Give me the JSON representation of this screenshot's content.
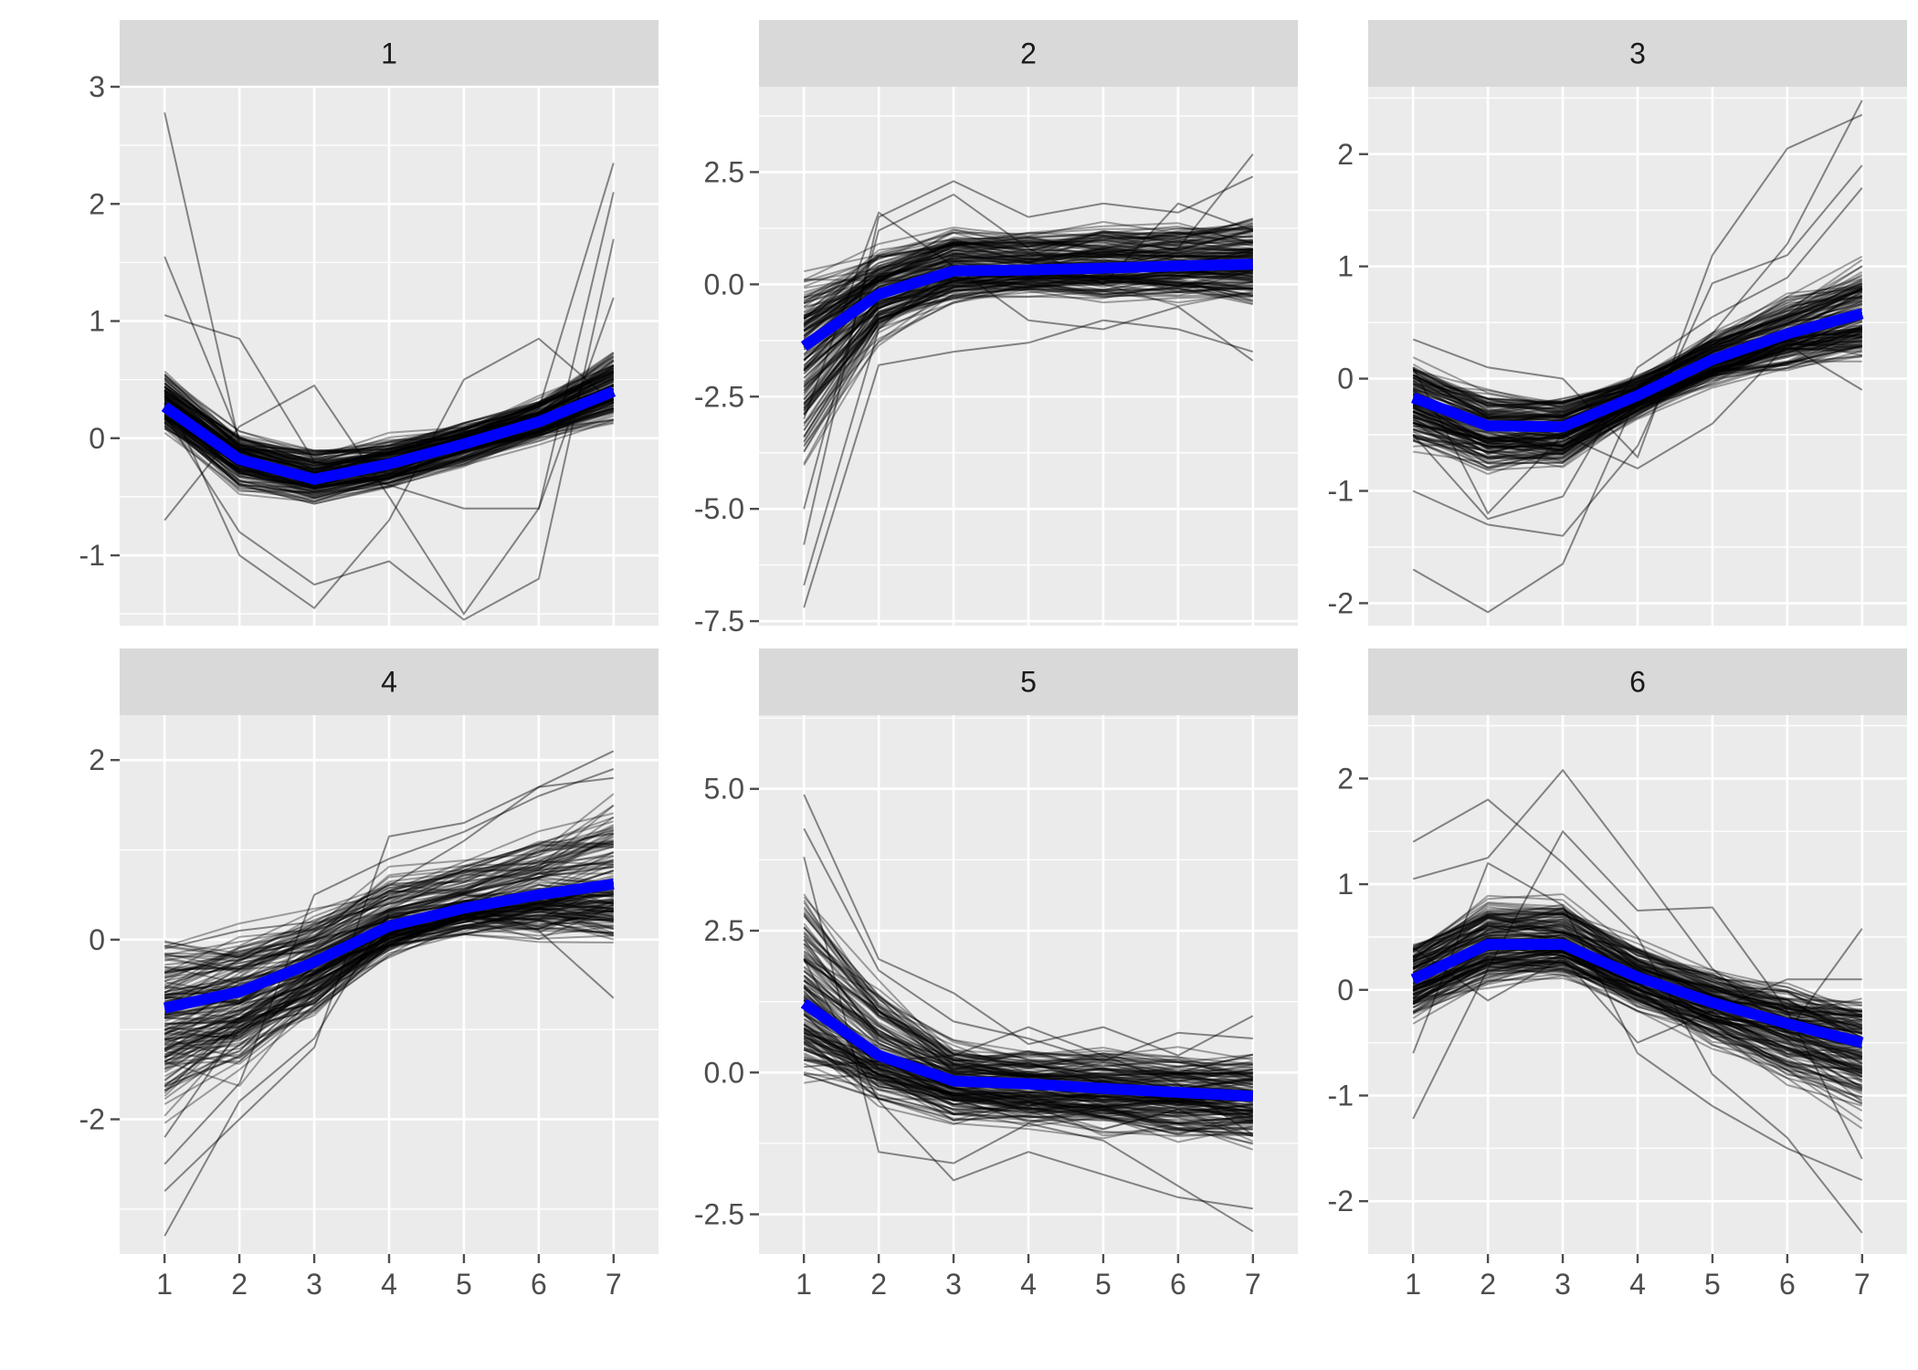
{
  "chart_data": [
    {
      "type": "line",
      "panel_label": "1",
      "x": [
        1,
        2,
        3,
        4,
        5,
        6,
        7
      ],
      "xlim": [
        0.4,
        7.6
      ],
      "ylim": [
        -1.6,
        3.0
      ],
      "y_ticks": [
        -1,
        0,
        1,
        2,
        3
      ],
      "y_tick_labels": [
        "-1",
        "0",
        "1",
        "2",
        "3"
      ],
      "mean": [
        0.27,
        -0.18,
        -0.35,
        -0.22,
        -0.05,
        0.14,
        0.4
      ],
      "spread_lo": [
        0.05,
        -0.45,
        -0.55,
        -0.45,
        -0.25,
        -0.05,
        0.15
      ],
      "spread_hi": [
        0.55,
        0.05,
        -0.1,
        0.0,
        0.15,
        0.35,
        0.75
      ],
      "outliers": [
        [
          2.78,
          -0.05,
          -0.3,
          -0.2,
          -0.1,
          0.2,
          0.5
        ],
        [
          1.55,
          0.0,
          -0.2,
          -0.3,
          -0.05,
          0.25,
          2.35
        ],
        [
          1.05,
          0.85,
          -0.2,
          -0.4,
          -0.6,
          -0.6,
          1.2
        ],
        [
          -0.7,
          0.1,
          0.45,
          -0.5,
          -1.5,
          -0.6,
          2.1
        ],
        [
          0.4,
          -1.0,
          -1.45,
          -0.7,
          0.5,
          0.85,
          0.3
        ],
        [
          0.2,
          -0.8,
          -1.25,
          -1.05,
          -1.55,
          -1.2,
          1.7
        ]
      ]
    },
    {
      "type": "line",
      "panel_label": "2",
      "x": [
        1,
        2,
        3,
        4,
        5,
        6,
        7
      ],
      "xlim": [
        0.4,
        7.6
      ],
      "ylim": [
        -7.6,
        4.4
      ],
      "y_ticks": [
        -7.5,
        -5.0,
        -2.5,
        0.0,
        2.5
      ],
      "y_tick_labels": [
        "-7.5",
        "-5.0",
        "-2.5",
        "0.0",
        "2.5"
      ],
      "mean": [
        -1.38,
        -0.22,
        0.3,
        0.32,
        0.36,
        0.41,
        0.45
      ],
      "spread_lo": [
        -4.2,
        -1.2,
        -0.45,
        -0.3,
        -0.35,
        -0.4,
        -0.45
      ],
      "spread_hi": [
        0.0,
        0.85,
        1.25,
        1.2,
        1.3,
        1.4,
        1.45
      ],
      "outliers": [
        [
          -7.2,
          -1.8,
          -1.5,
          -1.3,
          -0.8,
          -1.0,
          -1.5
        ],
        [
          -6.7,
          -1.0,
          0.5,
          0.2,
          0.4,
          0.8,
          2.9
        ],
        [
          -5.8,
          1.5,
          2.3,
          1.5,
          1.8,
          1.6,
          2.4
        ],
        [
          -5.0,
          1.2,
          2.0,
          0.8,
          0.0,
          1.8,
          1.2
        ],
        [
          -3.0,
          1.6,
          0.4,
          -0.8,
          -1.0,
          -0.5,
          -1.7
        ]
      ]
    },
    {
      "type": "line",
      "panel_label": "3",
      "x": [
        1,
        2,
        3,
        4,
        5,
        6,
        7
      ],
      "xlim": [
        0.4,
        7.6
      ],
      "ylim": [
        -2.2,
        2.6
      ],
      "y_ticks": [
        -2,
        -1,
        0,
        1,
        2
      ],
      "y_tick_labels": [
        "-2",
        "-1",
        "0",
        "1",
        "2"
      ],
      "mean": [
        -0.17,
        -0.42,
        -0.43,
        -0.15,
        0.17,
        0.4,
        0.58
      ],
      "spread_lo": [
        -0.6,
        -0.85,
        -0.8,
        -0.35,
        -0.05,
        0.1,
        0.15
      ],
      "spread_hi": [
        0.15,
        -0.1,
        -0.15,
        0.05,
        0.45,
        0.75,
        1.05
      ],
      "outliers": [
        [
          -1.7,
          -2.08,
          -1.65,
          -0.15,
          0.4,
          1.2,
          2.48
        ],
        [
          0.35,
          0.1,
          0.0,
          -0.7,
          1.1,
          2.05,
          2.35
        ],
        [
          -1.0,
          -1.3,
          -1.4,
          -0.6,
          0.85,
          1.1,
          1.9
        ],
        [
          0.1,
          -1.2,
          -0.5,
          -0.8,
          -0.4,
          0.3,
          -0.1
        ],
        [
          -0.5,
          -1.25,
          -1.05,
          0.1,
          0.55,
          0.9,
          1.7
        ]
      ]
    },
    {
      "type": "line",
      "panel_label": "4",
      "x": [
        1,
        2,
        3,
        4,
        5,
        6,
        7
      ],
      "xlim": [
        0.4,
        7.6
      ],
      "ylim": [
        -3.5,
        2.5
      ],
      "y_ticks": [
        -2,
        0,
        2
      ],
      "y_tick_labels": [
        "-2",
        "0",
        "2"
      ],
      "mean": [
        -0.76,
        -0.58,
        -0.25,
        0.15,
        0.35,
        0.5,
        0.62
      ],
      "spread_lo": [
        -1.95,
        -1.5,
        -0.85,
        -0.2,
        0.05,
        0.05,
        -0.05
      ],
      "spread_hi": [
        -0.1,
        0.05,
        0.3,
        0.75,
        0.95,
        1.25,
        1.55
      ],
      "outliers": [
        [
          -3.3,
          -1.8,
          -1.1,
          0.3,
          0.5,
          0.4,
          0.6
        ],
        [
          -2.8,
          -2.0,
          -1.2,
          1.15,
          1.3,
          1.7,
          2.1
        ],
        [
          -2.5,
          -1.6,
          0.5,
          0.9,
          1.2,
          1.6,
          1.9
        ],
        [
          -2.2,
          -1.0,
          -0.6,
          0.2,
          0.4,
          0.1,
          -0.65
        ],
        [
          -0.1,
          0.1,
          0.2,
          0.6,
          1.1,
          1.7,
          1.8
        ]
      ]
    },
    {
      "type": "line",
      "panel_label": "5",
      "x": [
        1,
        2,
        3,
        4,
        5,
        6,
        7
      ],
      "xlim": [
        0.4,
        7.6
      ],
      "ylim": [
        -3.2,
        6.3
      ],
      "y_ticks": [
        -2.5,
        0.0,
        2.5,
        5.0
      ],
      "y_tick_labels": [
        "-2.5",
        "0.0",
        "2.5",
        "5.0"
      ],
      "mean": [
        1.22,
        0.3,
        -0.15,
        -0.2,
        -0.28,
        -0.35,
        -0.42
      ],
      "spread_lo": [
        0.05,
        -0.45,
        -0.85,
        -0.95,
        -1.05,
        -1.15,
        -1.25
      ],
      "spread_hi": [
        3.4,
        1.55,
        0.55,
        0.45,
        0.4,
        0.4,
        0.4
      ],
      "outliers": [
        [
          4.9,
          2.0,
          1.4,
          0.5,
          0.8,
          0.3,
          1.0
        ],
        [
          4.3,
          1.8,
          0.9,
          0.6,
          0.2,
          0.7,
          0.6
        ],
        [
          3.8,
          -1.4,
          -1.6,
          -0.9,
          -1.2,
          -2.0,
          -2.8
        ],
        [
          2.0,
          -0.5,
          -1.9,
          -1.4,
          -1.8,
          -2.2,
          -2.4
        ],
        [
          0.1,
          0.2,
          0.3,
          0.8,
          0.3,
          -0.2,
          -1.1
        ]
      ]
    },
    {
      "type": "line",
      "panel_label": "6",
      "x": [
        1,
        2,
        3,
        4,
        5,
        6,
        7
      ],
      "xlim": [
        0.4,
        7.6
      ],
      "ylim": [
        -2.5,
        2.6
      ],
      "y_ticks": [
        -2,
        -1,
        0,
        1,
        2
      ],
      "y_tick_labels": [
        "-2",
        "-1",
        "0",
        "1",
        "2"
      ],
      "mean": [
        0.1,
        0.43,
        0.43,
        0.12,
        -0.12,
        -0.32,
        -0.5
      ],
      "spread_lo": [
        -0.3,
        0.05,
        0.1,
        -0.2,
        -0.55,
        -0.9,
        -1.25
      ],
      "spread_hi": [
        0.45,
        0.85,
        0.85,
        0.45,
        0.15,
        0.05,
        -0.1
      ],
      "outliers": [
        [
          1.4,
          1.8,
          1.2,
          0.5,
          -0.8,
          -1.4,
          -2.3
        ],
        [
          1.05,
          1.25,
          2.08,
          1.15,
          0.2,
          -0.4,
          0.58
        ],
        [
          -1.22,
          0.2,
          1.5,
          0.75,
          0.78,
          -0.2,
          -1.6
        ],
        [
          -0.6,
          1.2,
          0.8,
          -0.6,
          -1.1,
          -1.5,
          -1.8
        ],
        [
          0.4,
          -0.1,
          0.3,
          -0.5,
          -0.2,
          0.1,
          0.1
        ]
      ]
    }
  ],
  "style": {
    "panel_background": "#ebebeb",
    "strip_background": "#d9d9d9",
    "grid_color": "#ffffff",
    "individual_line_color": "#000000",
    "mean_line_color": "#0000ff",
    "tick_color": "#4d4d4d"
  }
}
